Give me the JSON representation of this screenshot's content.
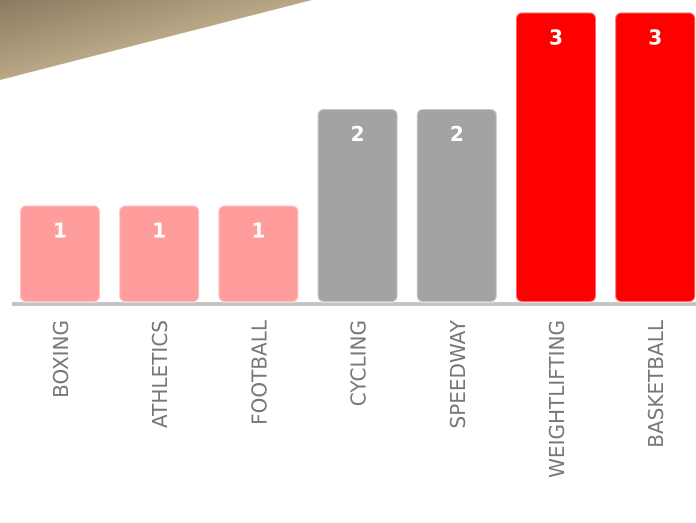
{
  "chart_data": {
    "type": "bar",
    "categories": [
      "BOXING",
      "ATHLETICS",
      "FOOTBALL",
      "CYCLING",
      "SPEEDWAY",
      "WEIGHTLIFTING",
      "BASKETBALL"
    ],
    "values": [
      1,
      1,
      1,
      2,
      2,
      3,
      3
    ],
    "colors": [
      "#ff9c9c",
      "#ff9c9c",
      "#ff9c9c",
      "#a3a3a3",
      "#a3a3a3",
      "#ff0000",
      "#ff0000"
    ]
  }
}
